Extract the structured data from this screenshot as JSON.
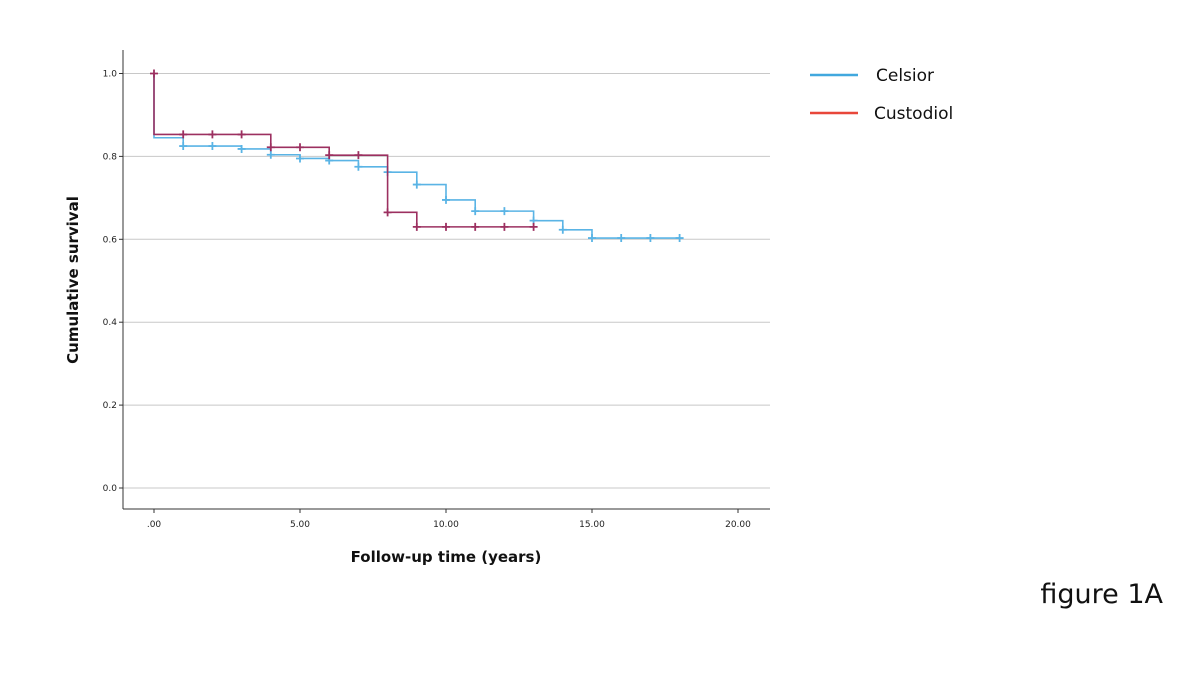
{
  "chart_data": {
    "type": "line",
    "xlabel": "Follow-up time (years)",
    "ylabel": "Cumulative survival",
    "xlim": [
      -1,
      21
    ],
    "ylim": [
      -0.05,
      1.05
    ],
    "x_ticks": [
      0,
      5,
      10,
      15,
      20
    ],
    "x_tick_labels": [
      ".00",
      "5.00",
      "10.00",
      "15.00",
      "20.00"
    ],
    "y_ticks": [
      0,
      0.2,
      0.4,
      0.6,
      0.8,
      1.0
    ],
    "y_tick_labels": [
      "0.0",
      "0.2",
      "0.4",
      "0.6",
      "0.8",
      "1.0"
    ],
    "grid": "horizontal",
    "legend_position": "top-right",
    "series": [
      {
        "name": "Celsior",
        "color": "#5ab4e5",
        "steps": [
          [
            0,
            1.0
          ],
          [
            0,
            0.845
          ],
          [
            1,
            0.825
          ],
          [
            3,
            0.818
          ],
          [
            4,
            0.804
          ],
          [
            5,
            0.795
          ],
          [
            6,
            0.79
          ],
          [
            7,
            0.775
          ],
          [
            8,
            0.762
          ],
          [
            9,
            0.732
          ],
          [
            10,
            0.695
          ],
          [
            11,
            0.668
          ],
          [
            13,
            0.645
          ],
          [
            14,
            0.623
          ],
          [
            15,
            0.603
          ],
          [
            18,
            0.603
          ]
        ],
        "censored": [
          [
            1,
            0.825
          ],
          [
            2,
            0.825
          ],
          [
            3,
            0.818
          ],
          [
            4,
            0.804
          ],
          [
            5,
            0.795
          ],
          [
            6,
            0.79
          ],
          [
            7,
            0.775
          ],
          [
            8,
            0.762
          ],
          [
            9,
            0.732
          ],
          [
            10,
            0.695
          ],
          [
            11,
            0.668
          ],
          [
            12,
            0.668
          ],
          [
            13,
            0.645
          ],
          [
            14,
            0.623
          ],
          [
            15,
            0.603
          ],
          [
            16,
            0.603
          ],
          [
            17,
            0.603
          ],
          [
            18,
            0.603
          ]
        ]
      },
      {
        "name": "Custodiol",
        "color": "#9c3060",
        "steps": [
          [
            0,
            1.0
          ],
          [
            0,
            0.853
          ],
          [
            4,
            0.822
          ],
          [
            6,
            0.803
          ],
          [
            8,
            0.665
          ],
          [
            9,
            0.63
          ],
          [
            13,
            0.63
          ]
        ],
        "censored": [
          [
            0,
            1.0
          ],
          [
            1,
            0.853
          ],
          [
            2,
            0.853
          ],
          [
            3,
            0.853
          ],
          [
            4,
            0.822
          ],
          [
            5,
            0.822
          ],
          [
            6,
            0.803
          ],
          [
            7,
            0.803
          ],
          [
            8,
            0.665
          ],
          [
            9,
            0.63
          ],
          [
            10,
            0.63
          ],
          [
            11,
            0.63
          ],
          [
            12,
            0.63
          ],
          [
            13,
            0.63
          ]
        ]
      }
    ]
  },
  "legend": [
    {
      "name": "Celsior",
      "color": "#41a8de"
    },
    {
      "name": "Custodiol",
      "color": "#e8473a"
    }
  ],
  "figure_label": "figure 1A"
}
